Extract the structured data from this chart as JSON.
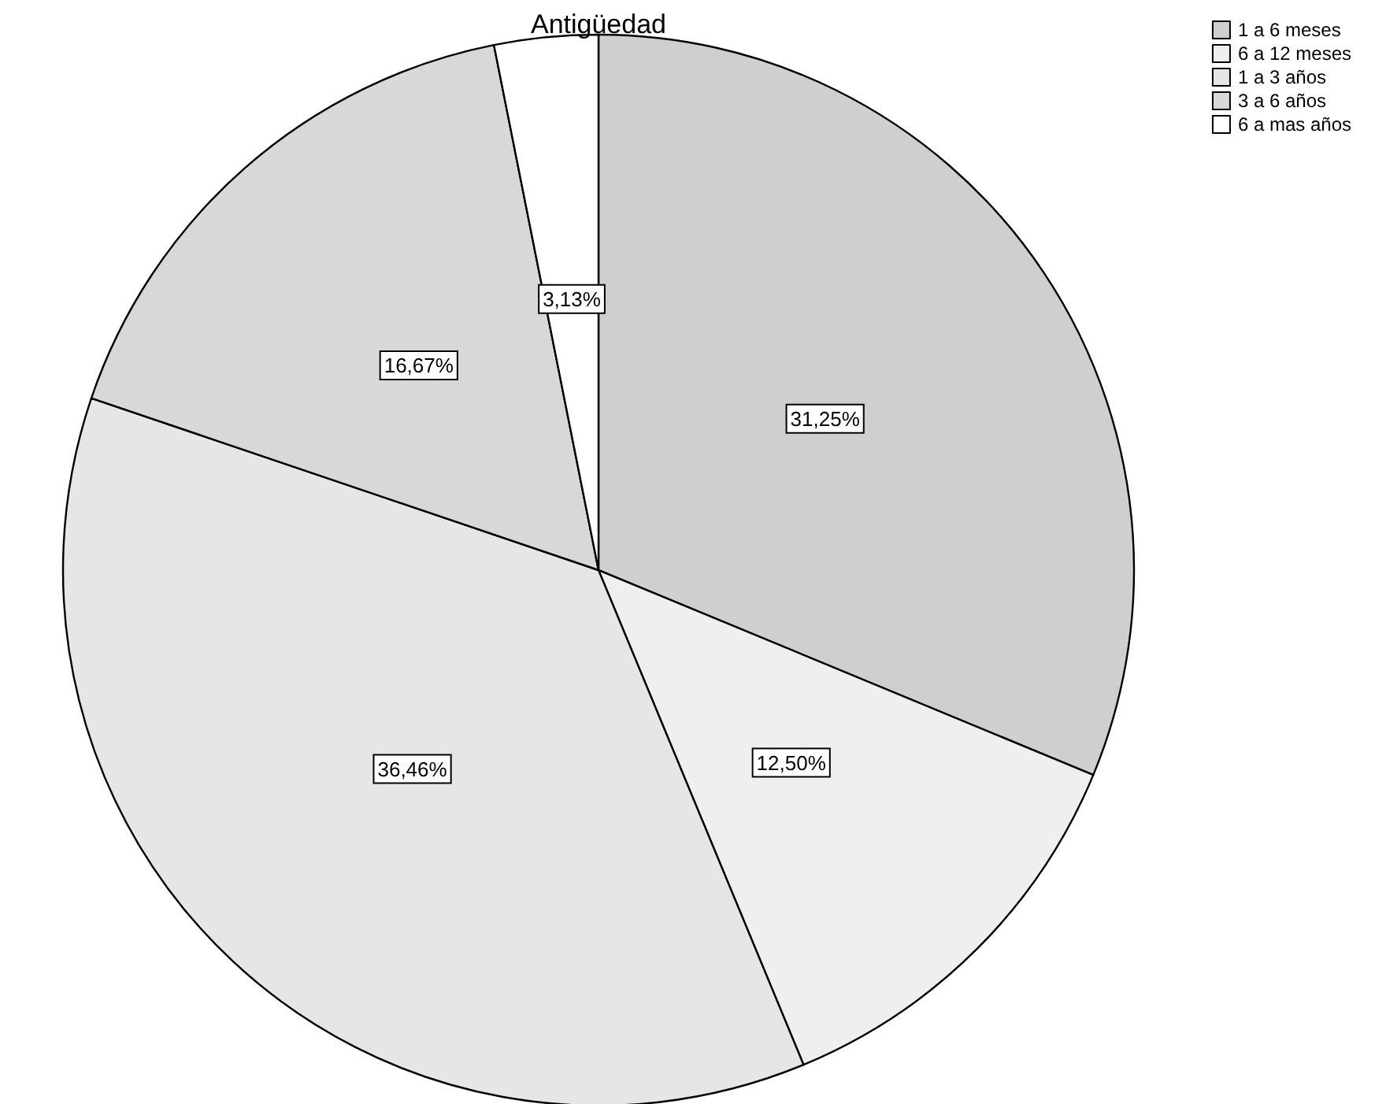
{
  "chart_data": {
    "type": "pie",
    "title": "Antigüedad",
    "categories": [
      "1 a 6 meses",
      "6 a 12 meses",
      "1 a 3 años",
      "3 a 6 años",
      "6 a mas años"
    ],
    "values": [
      31.25,
      12.5,
      36.46,
      16.67,
      3.13
    ],
    "value_labels": [
      "31,25%",
      "12,50%",
      "36,46%",
      "16,67%",
      "3,13%"
    ],
    "colors": [
      "#cfcfcf",
      "#efefef",
      "#e6e6e6",
      "#d8d8d8",
      "#ffffff"
    ],
    "legend": "top right"
  }
}
